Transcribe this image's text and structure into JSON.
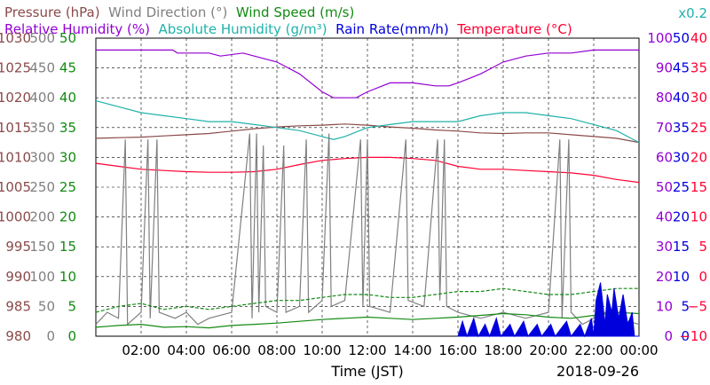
{
  "chart_data": {
    "type": "line",
    "date_label": "2018-09-26",
    "xlabel": "Time (JST)",
    "x_ticks": [
      "02:00",
      "04:00",
      "06:00",
      "08:00",
      "10:00",
      "12:00",
      "14:00",
      "16:00",
      "18:00",
      "20:00",
      "22:00",
      "00:00"
    ],
    "x_range_hours": [
      0,
      24
    ],
    "grid": true,
    "legend_rows": [
      [
        {
          "label": "Pressure (hPa)",
          "color": "#8b4a4a"
        },
        {
          "label": "Wind Direction (°)",
          "color": "#808080"
        },
        {
          "label": "Wind Speed (m/s)",
          "color": "#128a12"
        }
      ],
      [
        {
          "label": "Relative Humidity (%)",
          "color": "#9400d3"
        },
        {
          "label": "Absolute Humidity (g/m³)",
          "color": "#20b2aa"
        },
        {
          "label": "Rain Rate(mm/h)",
          "color": "#0000dd"
        },
        {
          "label": "Temperature (°C)",
          "color": "#ff0033"
        }
      ]
    ],
    "abs_humidity_scale_note": "x0.2",
    "axes": {
      "pressure": {
        "label": "Pressure (hPa)",
        "color": "#8b4a4a",
        "range": [
          980,
          1030
        ],
        "ticks": [
          980,
          985,
          990,
          995,
          1000,
          1005,
          1010,
          1015,
          1020,
          1025,
          1030
        ]
      },
      "wind_direction": {
        "label": "Wind Direction (°)",
        "color": "#808080",
        "range": [
          0,
          500
        ],
        "ticks": [
          0,
          50,
          100,
          150,
          200,
          250,
          300,
          350,
          400,
          450,
          500
        ]
      },
      "wind_speed": {
        "label": "Wind Speed (m/s)",
        "color": "#128a12",
        "range": [
          0,
          50
        ],
        "ticks": [
          0,
          5,
          10,
          15,
          20,
          25,
          30,
          35,
          40,
          45,
          50
        ]
      },
      "humidity": {
        "label": "Relative Humidity (%)",
        "color": "#9400d3",
        "range": [
          0,
          100
        ],
        "ticks": [
          0,
          10,
          20,
          30,
          40,
          50,
          60,
          70,
          80,
          90,
          100
        ]
      },
      "rain_rate": {
        "label": "Rain Rate(mm/h)",
        "color": "#0000dd",
        "range": [
          0,
          50
        ],
        "ticks": [
          0,
          5,
          10,
          15,
          20,
          25,
          30,
          35,
          40,
          45,
          50
        ]
      },
      "temperature": {
        "label": "Temperature (°C)",
        "color": "#ff0033",
        "range": [
          -10,
          40
        ],
        "ticks": [
          -10,
          -5,
          0,
          5,
          10,
          15,
          20,
          25,
          30,
          35,
          40
        ]
      }
    },
    "series": [
      {
        "name": "Pressure (hPa)",
        "axis": "pressure",
        "color": "#8b4a4a",
        "points": [
          [
            0,
            1013.2
          ],
          [
            1,
            1013.3
          ],
          [
            2,
            1013.4
          ],
          [
            3,
            1013.6
          ],
          [
            4,
            1013.8
          ],
          [
            5,
            1014.0
          ],
          [
            6,
            1014.4
          ],
          [
            7,
            1014.8
          ],
          [
            8,
            1015.1
          ],
          [
            9,
            1015.3
          ],
          [
            10,
            1015.4
          ],
          [
            11,
            1015.6
          ],
          [
            12,
            1015.4
          ],
          [
            13,
            1015.1
          ],
          [
            14,
            1014.9
          ],
          [
            15,
            1014.6
          ],
          [
            16,
            1014.4
          ],
          [
            17,
            1014.1
          ],
          [
            18,
            1014.0
          ],
          [
            19,
            1014.1
          ],
          [
            20,
            1014.1
          ],
          [
            21,
            1013.8
          ],
          [
            22,
            1013.5
          ],
          [
            23,
            1013.2
          ],
          [
            24,
            1012.5
          ]
        ]
      },
      {
        "name": "Relative Humidity (%)",
        "axis": "humidity",
        "color": "#9400d3",
        "points": [
          [
            0,
            96
          ],
          [
            3.4,
            96
          ],
          [
            3.6,
            95
          ],
          [
            5,
            95
          ],
          [
            5.5,
            94
          ],
          [
            6.5,
            95
          ],
          [
            7,
            94
          ],
          [
            8,
            92
          ],
          [
            9,
            88
          ],
          [
            10,
            82
          ],
          [
            10.5,
            80
          ],
          [
            11.5,
            80
          ],
          [
            12,
            82
          ],
          [
            13,
            85
          ],
          [
            14,
            85
          ],
          [
            15,
            84
          ],
          [
            15.6,
            84
          ],
          [
            16,
            85
          ],
          [
            17,
            88
          ],
          [
            18,
            92
          ],
          [
            19,
            94
          ],
          [
            20,
            95
          ],
          [
            21,
            95
          ],
          [
            22,
            96
          ],
          [
            24,
            96
          ]
        ]
      },
      {
        "name": "Absolute Humidity (g/m³)",
        "axis": "humidity",
        "color": "#20b2aa",
        "points": [
          [
            0,
            79
          ],
          [
            1,
            77
          ],
          [
            2,
            75
          ],
          [
            3,
            74
          ],
          [
            4,
            73
          ],
          [
            5,
            72
          ],
          [
            6,
            72
          ],
          [
            7,
            71
          ],
          [
            8,
            70
          ],
          [
            9,
            69
          ],
          [
            10,
            67
          ],
          [
            10.5,
            66
          ],
          [
            11,
            67
          ],
          [
            12,
            70
          ],
          [
            13,
            71
          ],
          [
            14,
            72
          ],
          [
            15,
            72
          ],
          [
            16,
            72
          ],
          [
            17,
            74
          ],
          [
            18,
            75
          ],
          [
            19,
            75
          ],
          [
            20,
            74
          ],
          [
            21,
            73
          ],
          [
            22,
            71
          ],
          [
            23,
            69
          ],
          [
            24,
            65
          ]
        ]
      },
      {
        "name": "Temperature (°C)",
        "axis": "temperature",
        "color": "#ff0033",
        "points": [
          [
            0,
            19.0
          ],
          [
            1,
            18.5
          ],
          [
            2,
            18.0
          ],
          [
            3,
            17.8
          ],
          [
            4,
            17.6
          ],
          [
            5,
            17.5
          ],
          [
            6,
            17.5
          ],
          [
            7,
            17.6
          ],
          [
            8,
            18.0
          ],
          [
            9,
            18.8
          ],
          [
            10,
            19.5
          ],
          [
            11,
            19.8
          ],
          [
            12,
            20.0
          ],
          [
            13,
            20.0
          ],
          [
            14,
            19.8
          ],
          [
            15,
            19.5
          ],
          [
            16,
            18.5
          ],
          [
            17,
            18.0
          ],
          [
            18,
            18.0
          ],
          [
            19,
            17.8
          ],
          [
            20,
            17.6
          ],
          [
            21,
            17.4
          ],
          [
            22,
            17.0
          ],
          [
            23,
            16.3
          ],
          [
            24,
            15.8
          ]
        ]
      },
      {
        "name": "Wind Direction (°)",
        "axis": "wind_direction",
        "color": "#808080",
        "points": [
          [
            0,
            20
          ],
          [
            0.5,
            40
          ],
          [
            1,
            30
          ],
          [
            1.3,
            330
          ],
          [
            1.4,
            20
          ],
          [
            2,
            40
          ],
          [
            2.3,
            330
          ],
          [
            2.4,
            30
          ],
          [
            2.7,
            330
          ],
          [
            2.8,
            40
          ],
          [
            3.5,
            30
          ],
          [
            4,
            40
          ],
          [
            4.5,
            20
          ],
          [
            5,
            30
          ],
          [
            6,
            40
          ],
          [
            6.8,
            340
          ],
          [
            6.9,
            30
          ],
          [
            7.1,
            340
          ],
          [
            7.2,
            40
          ],
          [
            7.4,
            320
          ],
          [
            7.5,
            50
          ],
          [
            8,
            40
          ],
          [
            8.3,
            320
          ],
          [
            8.4,
            40
          ],
          [
            9,
            50
          ],
          [
            9.3,
            330
          ],
          [
            9.4,
            40
          ],
          [
            10,
            60
          ],
          [
            10.3,
            340
          ],
          [
            10.4,
            50
          ],
          [
            11,
            60
          ],
          [
            11.7,
            330
          ],
          [
            11.8,
            50
          ],
          [
            12,
            330
          ],
          [
            12.1,
            50
          ],
          [
            13,
            40
          ],
          [
            13.7,
            330
          ],
          [
            13.8,
            60
          ],
          [
            14.5,
            50
          ],
          [
            15.1,
            330
          ],
          [
            15.2,
            60
          ],
          [
            15.4,
            330
          ],
          [
            15.5,
            50
          ],
          [
            16,
            40
          ],
          [
            17,
            30
          ],
          [
            18,
            40
          ],
          [
            19,
            30
          ],
          [
            20,
            40
          ],
          [
            20.5,
            330
          ],
          [
            20.6,
            30
          ],
          [
            20.9,
            330
          ],
          [
            21,
            40
          ],
          [
            21.5,
            20
          ],
          [
            22,
            30
          ],
          [
            22.5,
            40
          ],
          [
            23,
            30
          ],
          [
            24,
            20
          ]
        ]
      },
      {
        "name": "Wind Speed (m/s)",
        "axis": "wind_speed",
        "color": "#128a12",
        "points": [
          [
            0,
            1.5
          ],
          [
            1,
            1.8
          ],
          [
            2,
            2.0
          ],
          [
            3,
            1.5
          ],
          [
            4,
            1.6
          ],
          [
            5,
            1.4
          ],
          [
            6,
            1.8
          ],
          [
            7,
            2.0
          ],
          [
            8,
            2.2
          ],
          [
            9,
            2.5
          ],
          [
            10,
            2.8
          ],
          [
            11,
            3.0
          ],
          [
            12,
            3.2
          ],
          [
            13,
            3.0
          ],
          [
            14,
            2.8
          ],
          [
            15,
            3.0
          ],
          [
            16,
            3.2
          ],
          [
            17,
            3.5
          ],
          [
            18,
            3.8
          ],
          [
            19,
            3.6
          ],
          [
            20,
            3.2
          ],
          [
            21,
            3.0
          ],
          [
            22,
            3.5
          ],
          [
            23,
            4.0
          ],
          [
            24,
            3.8
          ]
        ]
      },
      {
        "name": "Wind Speed gust (m/s)",
        "axis": "wind_speed",
        "color": "#128a12",
        "dashed": true,
        "points": [
          [
            0,
            4
          ],
          [
            1,
            5
          ],
          [
            2,
            5.5
          ],
          [
            3,
            4.5
          ],
          [
            4,
            5
          ],
          [
            5,
            4.5
          ],
          [
            6,
            5
          ],
          [
            7,
            5.5
          ],
          [
            8,
            6
          ],
          [
            9,
            6
          ],
          [
            10,
            6.5
          ],
          [
            11,
            7
          ],
          [
            12,
            7
          ],
          [
            13,
            6.5
          ],
          [
            14,
            6.5
          ],
          [
            15,
            7
          ],
          [
            16,
            7.5
          ],
          [
            17,
            7.5
          ],
          [
            18,
            8
          ],
          [
            19,
            7.5
          ],
          [
            20,
            7
          ],
          [
            21,
            7
          ],
          [
            22,
            7.5
          ],
          [
            23,
            8
          ],
          [
            24,
            8
          ]
        ]
      },
      {
        "name": "Rain Rate(mm/h)",
        "axis": "rain_rate",
        "color": "#0000dd",
        "fill": true,
        "points": [
          [
            16.0,
            0
          ],
          [
            16.2,
            2.5
          ],
          [
            16.4,
            0
          ],
          [
            16.7,
            3
          ],
          [
            16.9,
            0
          ],
          [
            17.2,
            2
          ],
          [
            17.4,
            0
          ],
          [
            17.7,
            3
          ],
          [
            17.9,
            0
          ],
          [
            18.3,
            2
          ],
          [
            18.5,
            0
          ],
          [
            18.9,
            2.5
          ],
          [
            19.1,
            0
          ],
          [
            19.5,
            2
          ],
          [
            19.7,
            0
          ],
          [
            20.1,
            2
          ],
          [
            20.3,
            0
          ],
          [
            20.8,
            2.5
          ],
          [
            21.0,
            0
          ],
          [
            21.4,
            2
          ],
          [
            21.6,
            0
          ],
          [
            21.9,
            3
          ],
          [
            22.0,
            0
          ],
          [
            22.1,
            6
          ],
          [
            22.3,
            9
          ],
          [
            22.5,
            2
          ],
          [
            22.6,
            7
          ],
          [
            22.8,
            4
          ],
          [
            22.9,
            8
          ],
          [
            23.1,
            3
          ],
          [
            23.3,
            7
          ],
          [
            23.5,
            2
          ],
          [
            23.7,
            4
          ],
          [
            23.8,
            0
          ],
          [
            24.0,
            0
          ]
        ]
      }
    ]
  }
}
